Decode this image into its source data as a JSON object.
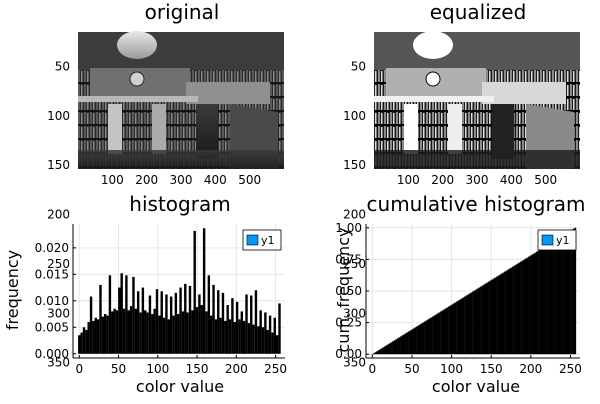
{
  "chart_data": [
    {
      "type": "image",
      "title": "original",
      "xticks": [
        "100",
        "200",
        "300",
        "400",
        "500"
      ],
      "yticks": [
        "50",
        "100",
        "150",
        "200",
        "250",
        "300",
        "350"
      ],
      "xlim": [
        0,
        600
      ],
      "ylim": [
        0,
        400
      ]
    },
    {
      "type": "image",
      "title": "equalized",
      "xticks": [
        "100",
        "200",
        "300",
        "400",
        "500"
      ],
      "yticks": [
        "50",
        "100",
        "150",
        "200",
        "250",
        "300",
        "350"
      ],
      "xlim": [
        0,
        600
      ],
      "ylim": [
        0,
        400
      ]
    },
    {
      "type": "bar",
      "title": "histogram",
      "xlabel": "color value",
      "ylabel": "frequency",
      "xlim": [
        -8,
        262
      ],
      "ylim": [
        -0.0008,
        0.0245
      ],
      "xticks": [
        "0",
        "50",
        "100",
        "150",
        "200",
        "250"
      ],
      "yticks": [
        "0.000",
        "0.005",
        "0.010",
        "0.015",
        "0.020"
      ],
      "legend": "y1",
      "legend_position": "top-right",
      "bar_color": "#000000",
      "grid": true,
      "series": [
        {
          "name": "y1",
          "x": [
            0,
            3,
            6,
            9,
            12,
            15,
            18,
            21,
            24,
            27,
            30,
            33,
            36,
            39,
            42,
            45,
            48,
            51,
            54,
            57,
            60,
            63,
            66,
            69,
            72,
            75,
            78,
            81,
            84,
            87,
            90,
            93,
            96,
            99,
            102,
            105,
            108,
            111,
            114,
            117,
            120,
            123,
            126,
            129,
            132,
            135,
            138,
            141,
            144,
            147,
            150,
            153,
            156,
            159,
            162,
            165,
            168,
            171,
            174,
            177,
            180,
            183,
            186,
            189,
            192,
            195,
            198,
            201,
            204,
            207,
            210,
            213,
            216,
            219,
            222,
            225,
            228,
            231,
            234,
            237,
            240,
            243,
            246,
            249,
            252,
            255
          ],
          "values": [
            0.0035,
            0.004,
            0.005,
            0.0045,
            0.006,
            0.0108,
            0.0062,
            0.0068,
            0.0065,
            0.013,
            0.007,
            0.0075,
            0.0072,
            0.0148,
            0.008,
            0.0085,
            0.0082,
            0.0125,
            0.0152,
            0.0085,
            0.0148,
            0.0082,
            0.009,
            0.0145,
            0.0085,
            0.0118,
            0.0078,
            0.0125,
            0.0082,
            0.0078,
            0.011,
            0.0075,
            0.0085,
            0.0122,
            0.0072,
            0.0118,
            0.0068,
            0.0112,
            0.0065,
            0.0108,
            0.0072,
            0.0115,
            0.0075,
            0.0125,
            0.008,
            0.0132,
            0.0078,
            0.0128,
            0.0082,
            0.0232,
            0.0088,
            0.0112,
            0.0092,
            0.0237,
            0.008,
            0.0148,
            0.0072,
            0.013,
            0.0065,
            0.012,
            0.0068,
            0.0115,
            0.0062,
            0.0092,
            0.0065,
            0.0105,
            0.006,
            0.0098,
            0.0065,
            0.008,
            0.0062,
            0.0112,
            0.0058,
            0.011,
            0.0055,
            0.012,
            0.0052,
            0.0082,
            0.005,
            0.0078,
            0.0045,
            0.0072,
            0.004,
            0.0068,
            0.0035,
            0.0095
          ]
        }
      ]
    },
    {
      "type": "bar",
      "title": "cumulative histogram",
      "xlabel": "color value",
      "ylabel": "cum. frequency",
      "xlim": [
        -8,
        262
      ],
      "ylim": [
        -0.03,
        1.03
      ],
      "xticks": [
        "0",
        "50",
        "100",
        "150",
        "200",
        "250"
      ],
      "yticks": [
        "0.00",
        "0.25",
        "0.50",
        "0.75",
        "1.00"
      ],
      "legend": "y1",
      "legend_position": "top-right",
      "bar_color": "#000000",
      "grid": true,
      "series": [
        {
          "name": "y1",
          "x_start": 0,
          "x_end": 256,
          "y_start": 0,
          "y_end": 1.0
        }
      ]
    }
  ]
}
